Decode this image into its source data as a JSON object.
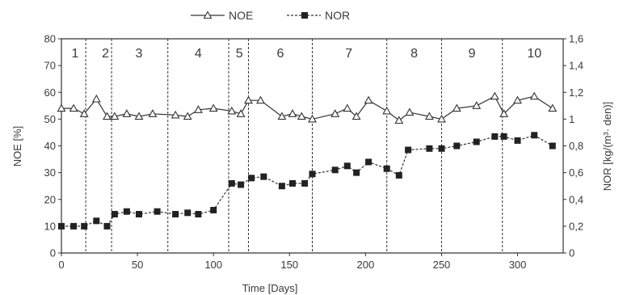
{
  "chart_data": {
    "type": "line",
    "xlabel": "Time [Days]",
    "ylabel_left": "NOE [%]",
    "ylabel_right": "NOR [kg/(m³· den)]",
    "xlim": [
      0,
      330
    ],
    "x_ticks": [
      0,
      50,
      100,
      150,
      200,
      250,
      300
    ],
    "ylim_left": [
      0,
      80
    ],
    "y_ticks_left": [
      0,
      10,
      20,
      30,
      40,
      50,
      60,
      70,
      80
    ],
    "ylim_right": [
      0,
      1.6
    ],
    "y_ticks_right": [
      "0",
      "0,2",
      "0,4",
      "0,6",
      "0,8",
      "1",
      "1,2",
      "1,4",
      "1,6"
    ],
    "grid": false,
    "legend_position": "top-center",
    "phase_boundaries": [
      16,
      33,
      70,
      110,
      123,
      165,
      214,
      250,
      290
    ],
    "phases": [
      {
        "label": "1",
        "x": 9
      },
      {
        "label": "2",
        "x": 29
      },
      {
        "label": "3",
        "x": 51
      },
      {
        "label": "4",
        "x": 90
      },
      {
        "label": "5",
        "x": 117
      },
      {
        "label": "6",
        "x": 144
      },
      {
        "label": "7",
        "x": 189
      },
      {
        "label": "8",
        "x": 232
      },
      {
        "label": "9",
        "x": 270
      },
      {
        "label": "10",
        "x": 311
      }
    ],
    "series": [
      {
        "name": "NOE",
        "axis": "left",
        "marker": "triangle",
        "line": "solid",
        "points": [
          [
            0,
            54
          ],
          [
            8,
            54
          ],
          [
            15,
            52
          ],
          [
            23,
            57.5
          ],
          [
            30,
            51
          ],
          [
            35,
            51
          ],
          [
            43,
            52
          ],
          [
            51,
            51
          ],
          [
            60,
            52
          ],
          [
            75,
            51.5
          ],
          [
            83,
            51
          ],
          [
            90,
            53.5
          ],
          [
            100,
            54
          ],
          [
            112,
            53
          ],
          [
            118,
            52
          ],
          [
            123,
            57
          ],
          [
            131,
            57
          ],
          [
            145,
            51
          ],
          [
            152,
            52
          ],
          [
            158,
            51
          ],
          [
            165,
            50
          ],
          [
            180,
            52
          ],
          [
            188,
            54
          ],
          [
            194,
            51
          ],
          [
            202,
            57
          ],
          [
            214,
            53
          ],
          [
            222,
            49.5
          ],
          [
            229,
            52.5
          ],
          [
            242,
            51
          ],
          [
            250,
            50
          ],
          [
            260,
            54
          ],
          [
            273,
            55
          ],
          [
            285,
            58.5
          ],
          [
            291,
            52
          ],
          [
            300,
            57
          ],
          [
            311,
            58.5
          ],
          [
            323,
            54
          ]
        ]
      },
      {
        "name": "NOR",
        "axis": "right",
        "marker": "square",
        "line": "dashed",
        "points": [
          [
            0,
            0.2
          ],
          [
            8,
            0.2
          ],
          [
            15,
            0.2
          ],
          [
            23,
            0.24
          ],
          [
            30,
            0.2
          ],
          [
            35,
            0.29
          ],
          [
            43,
            0.31
          ],
          [
            51,
            0.29
          ],
          [
            63,
            0.31
          ],
          [
            75,
            0.29
          ],
          [
            83,
            0.3
          ],
          [
            90,
            0.29
          ],
          [
            100,
            0.32
          ],
          [
            112,
            0.52
          ],
          [
            118,
            0.51
          ],
          [
            125,
            0.56
          ],
          [
            133,
            0.57
          ],
          [
            145,
            0.5
          ],
          [
            152,
            0.52
          ],
          [
            160,
            0.52
          ],
          [
            165,
            0.59
          ],
          [
            180,
            0.62
          ],
          [
            188,
            0.65
          ],
          [
            194,
            0.6
          ],
          [
            202,
            0.68
          ],
          [
            214,
            0.63
          ],
          [
            222,
            0.58
          ],
          [
            228,
            0.77
          ],
          [
            242,
            0.78
          ],
          [
            250,
            0.78
          ],
          [
            260,
            0.8
          ],
          [
            273,
            0.83
          ],
          [
            285,
            0.87
          ],
          [
            291,
            0.87
          ],
          [
            300,
            0.84
          ],
          [
            311,
            0.88
          ],
          [
            323,
            0.8
          ]
        ]
      }
    ]
  }
}
